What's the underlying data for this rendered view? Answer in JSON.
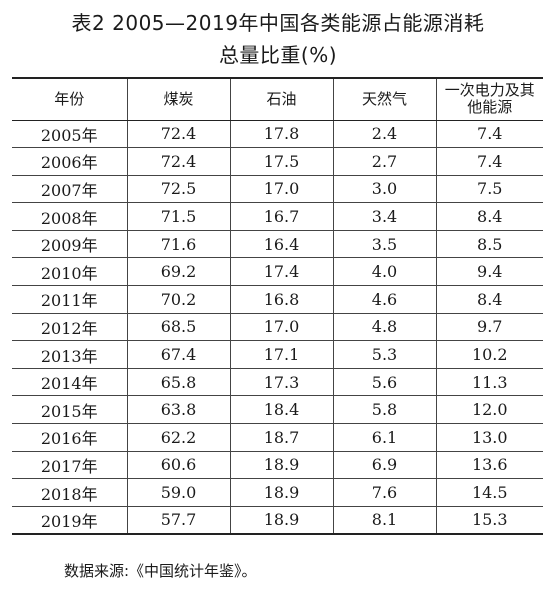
{
  "title": {
    "line1": "表2 2005—2019年中国各类能源占能源消耗",
    "line2": "总量比重(%)"
  },
  "table": {
    "headers": [
      "年份",
      "煤炭",
      "石油",
      "天然气",
      "一次电力及其他能源"
    ],
    "rows": [
      [
        "2005年",
        "72.4",
        "17.8",
        "2.4",
        "7.4"
      ],
      [
        "2006年",
        "72.4",
        "17.5",
        "2.7",
        "7.4"
      ],
      [
        "2007年",
        "72.5",
        "17.0",
        "3.0",
        "7.5"
      ],
      [
        "2008年",
        "71.5",
        "16.7",
        "3.4",
        "8.4"
      ],
      [
        "2009年",
        "71.6",
        "16.4",
        "3.5",
        "8.5"
      ],
      [
        "2010年",
        "69.2",
        "17.4",
        "4.0",
        "9.4"
      ],
      [
        "2011年",
        "70.2",
        "16.8",
        "4.6",
        "8.4"
      ],
      [
        "2012年",
        "68.5",
        "17.0",
        "4.8",
        "9.7"
      ],
      [
        "2013年",
        "67.4",
        "17.1",
        "5.3",
        "10.2"
      ],
      [
        "2014年",
        "65.8",
        "17.3",
        "5.6",
        "11.3"
      ],
      [
        "2015年",
        "63.8",
        "18.4",
        "5.8",
        "12.0"
      ],
      [
        "2016年",
        "62.2",
        "18.7",
        "6.1",
        "13.0"
      ],
      [
        "2017年",
        "60.6",
        "18.9",
        "6.9",
        "13.6"
      ],
      [
        "2018年",
        "59.0",
        "18.9",
        "7.6",
        "14.5"
      ],
      [
        "2019年",
        "57.7",
        "18.9",
        "8.1",
        "15.3"
      ]
    ]
  },
  "note": "数据来源:《中国统计年鉴》。"
}
